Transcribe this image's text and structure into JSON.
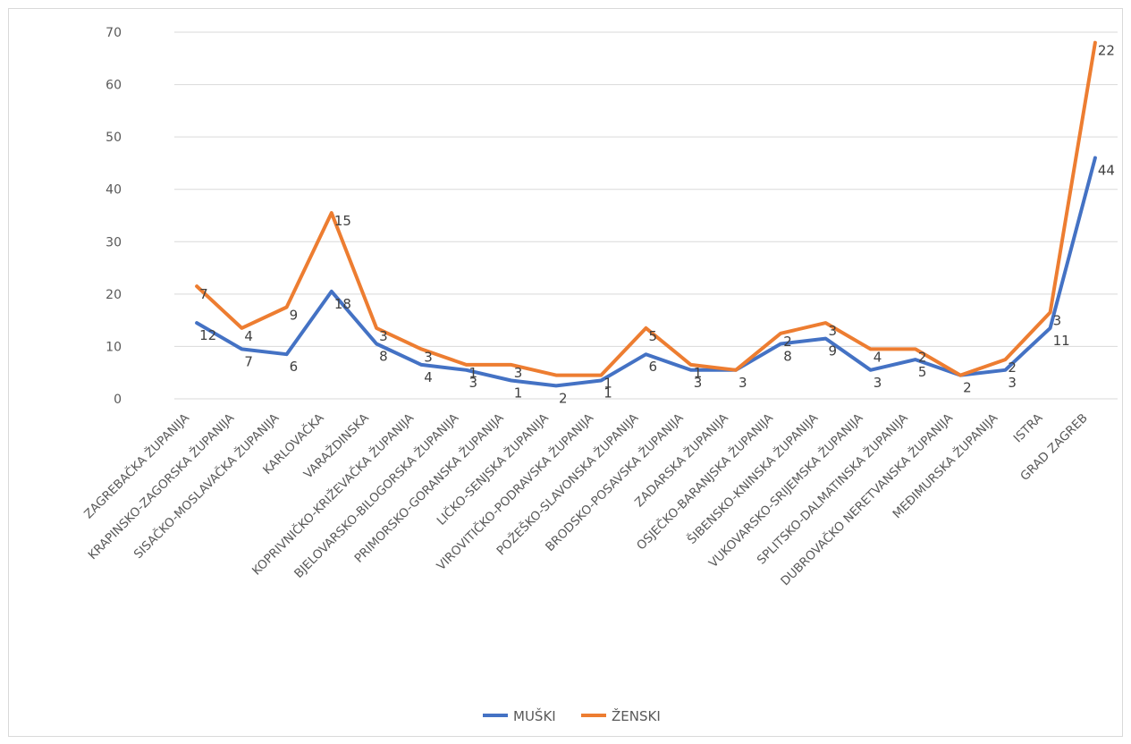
{
  "chart_data": {
    "type": "line",
    "title": "",
    "xlabel": "",
    "ylabel": "",
    "ylim": [
      0,
      70
    ],
    "yticks": [
      0,
      10,
      20,
      30,
      40,
      50,
      60,
      70
    ],
    "grid": true,
    "legend_position": "bottom",
    "colors": {
      "MUŠKI": "#4472c4",
      "ŽENSKI": "#ed7d31"
    },
    "categories": [
      "ZAGREBAČKA ŽUPANIJA",
      "KRAPINSKO-ZAGORSKA ŽUPANIJA",
      "SISAČKO-MOSLAVAČKA ŽUPANIJA",
      "KARLOVAČKA",
      "VARAŽDINSKA",
      "KOPRIVNIČKO-KRIŽEVAČKA ŽUPANIJA",
      "BJELOVARSKO-BILOGORSKA ŽUPANIJA",
      "PRIMORSKO-GORANSKA ŽUPANIJA",
      "LIČKO-SENJSKA ŽUPANIJA",
      "VIROVITIČKO-PODRAVSKA ŽUPANIJA",
      "POŽEŠKO-SLAVONSKA ŽUPANIJA",
      "BRODSKO-POSAVSKA ŽUPANIJA",
      "ZADARSKA ŽUPANIJA",
      "OSJEČKO-BARANJSKA ŽUPANIJA",
      "ŠIBENSKO-KNINSKA ŽUPANIJA",
      "VUKOVARSKO-SRIJEMSKA ŽUPANIJA",
      "SPLITSKO-DALMATINSKA ŽUPANIJA",
      "DUBROVAČKO NERETVANSKA ŽUPANIJA",
      "MEĐIMURSKA ŽUPANIJA",
      "ISTRA",
      "GRAD ZAGREB"
    ],
    "series": [
      {
        "name": "MUŠKI",
        "values": [
          14.5,
          9.5,
          8.5,
          20.5,
          10.5,
          6.5,
          5.5,
          3.5,
          2.5,
          3.5,
          8.5,
          5.5,
          5.5,
          10.5,
          11.5,
          5.5,
          7.5,
          4.5,
          5.5,
          13.5,
          46.0
        ],
        "labels": [
          "12",
          "7",
          "6",
          "18",
          "8",
          "4",
          "3",
          "1",
          "2",
          "1",
          "6",
          "3",
          "3",
          "8",
          "9",
          "3",
          "5",
          "2",
          "3",
          "11",
          "44"
        ]
      },
      {
        "name": "ŽENSKI",
        "values": [
          21.5,
          13.5,
          17.5,
          35.5,
          13.5,
          9.5,
          6.5,
          6.5,
          4.5,
          4.5,
          13.5,
          6.5,
          5.5,
          12.5,
          14.5,
          9.5,
          9.5,
          4.5,
          7.5,
          16.5,
          68.0
        ],
        "labels": [
          "7",
          "4",
          "9",
          "15",
          "3",
          "3",
          "1",
          "3",
          "",
          "1",
          "5",
          "1",
          "",
          "2",
          "3",
          "4",
          "2",
          "",
          "2",
          "3",
          "22"
        ]
      }
    ]
  }
}
